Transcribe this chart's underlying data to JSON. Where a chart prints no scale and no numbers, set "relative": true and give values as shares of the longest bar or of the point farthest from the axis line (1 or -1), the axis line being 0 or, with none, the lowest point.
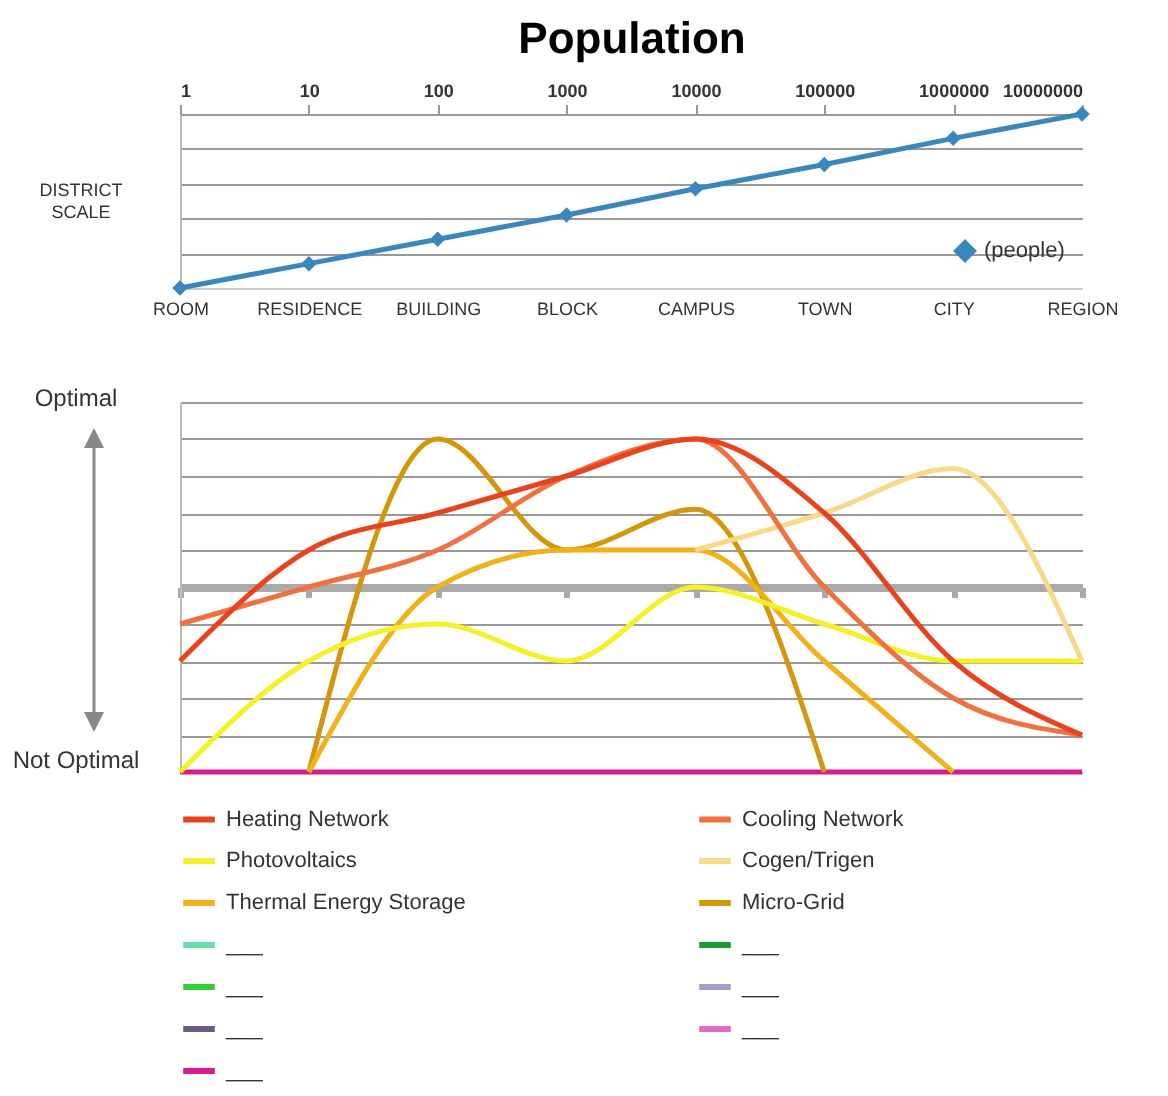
{
  "chart_data": [
    {
      "type": "line",
      "x2label": "Population",
      "x2lim": [
        1,
        10000000
      ],
      "x2ticks": [
        1,
        10,
        100,
        1000,
        10000,
        100000,
        1000000,
        10000000
      ],
      "log": "x2",
      "ylabel": "DISTRICT SCALE",
      "relative": true,
      "grid": "y",
      "legend": "bottom right",
      "marker": "diamond",
      "categories": [
        "ROOM",
        "RESIDENCE",
        "BUILDING",
        "BLOCK",
        "CAMPUS",
        "TOWN",
        "CITY",
        "REGION"
      ],
      "series": [
        {
          "name": "(people)",
          "color": "#3a87c0",
          "values": [
            0,
            0.14,
            0.28,
            0.42,
            0.57,
            0.71,
            0.86,
            1
          ]
        }
      ]
    },
    {
      "type": "line",
      "relative": true,
      "grid": "y",
      "legend": "bottom",
      "annotations": [
        "Optimal",
        "Not Optimal"
      ],
      "categories": [
        null,
        null,
        null,
        null,
        null,
        null,
        null,
        null
      ],
      "series": [
        {
          "name": "Heating Network",
          "color": "#e8431c",
          "values": [
            -0.4,
            0.2,
            0.4,
            0.6,
            0.8,
            0.4,
            -0.4,
            -0.8
          ]
        },
        {
          "name": "Cooling Network",
          "color": "#f07040",
          "values": [
            -0.2,
            0,
            0.2,
            0.6,
            0.8,
            0,
            -0.6,
            -0.8
          ]
        },
        {
          "name": "Photovoltaics",
          "color": "#f5f02a",
          "values": [
            -1,
            -0.4,
            -0.2,
            -0.4,
            0,
            -0.2,
            -0.4,
            -0.4
          ]
        },
        {
          "name": "Cogen/Trigen",
          "color": "#f8d98a",
          "values": [
            null,
            null,
            null,
            null,
            0.2,
            0.4,
            0.64,
            -0.4
          ]
        },
        {
          "name": "Thermal Energy Storage",
          "color": "#f2b01a",
          "values": [
            null,
            -1,
            0,
            0.2,
            0.2,
            -0.4,
            -1,
            null
          ]
        },
        {
          "name": "Micro-Grid",
          "color": "#d4960c",
          "values": [
            null,
            -1,
            0.8,
            0.2,
            0.42,
            -1,
            null,
            null
          ]
        },
        {
          "name": "___",
          "color": "#66e0a8",
          "values": [
            null,
            null,
            null,
            null,
            null,
            null,
            null,
            null
          ]
        },
        {
          "name": "___",
          "color": "#1a9c30",
          "values": [
            null,
            null,
            null,
            null,
            null,
            null,
            null,
            null
          ]
        },
        {
          "name": "___",
          "color": "#33cc33",
          "values": [
            null,
            null,
            null,
            null,
            null,
            null,
            null,
            null
          ]
        },
        {
          "name": "___",
          "color": "#a89cc8",
          "values": [
            null,
            null,
            null,
            null,
            null,
            null,
            null,
            null
          ]
        },
        {
          "name": "___",
          "color": "#6c5a80",
          "values": [
            null,
            null,
            null,
            null,
            null,
            null,
            null,
            null
          ]
        },
        {
          "name": "___",
          "color": "#e26ac8",
          "values": [
            null,
            null,
            null,
            null,
            null,
            null,
            null,
            null
          ]
        },
        {
          "name": "___",
          "color": "#d81b8c",
          "values": [
            -1,
            -1,
            -1,
            -1,
            -1,
            -1,
            -1,
            -1
          ]
        }
      ]
    }
  ]
}
